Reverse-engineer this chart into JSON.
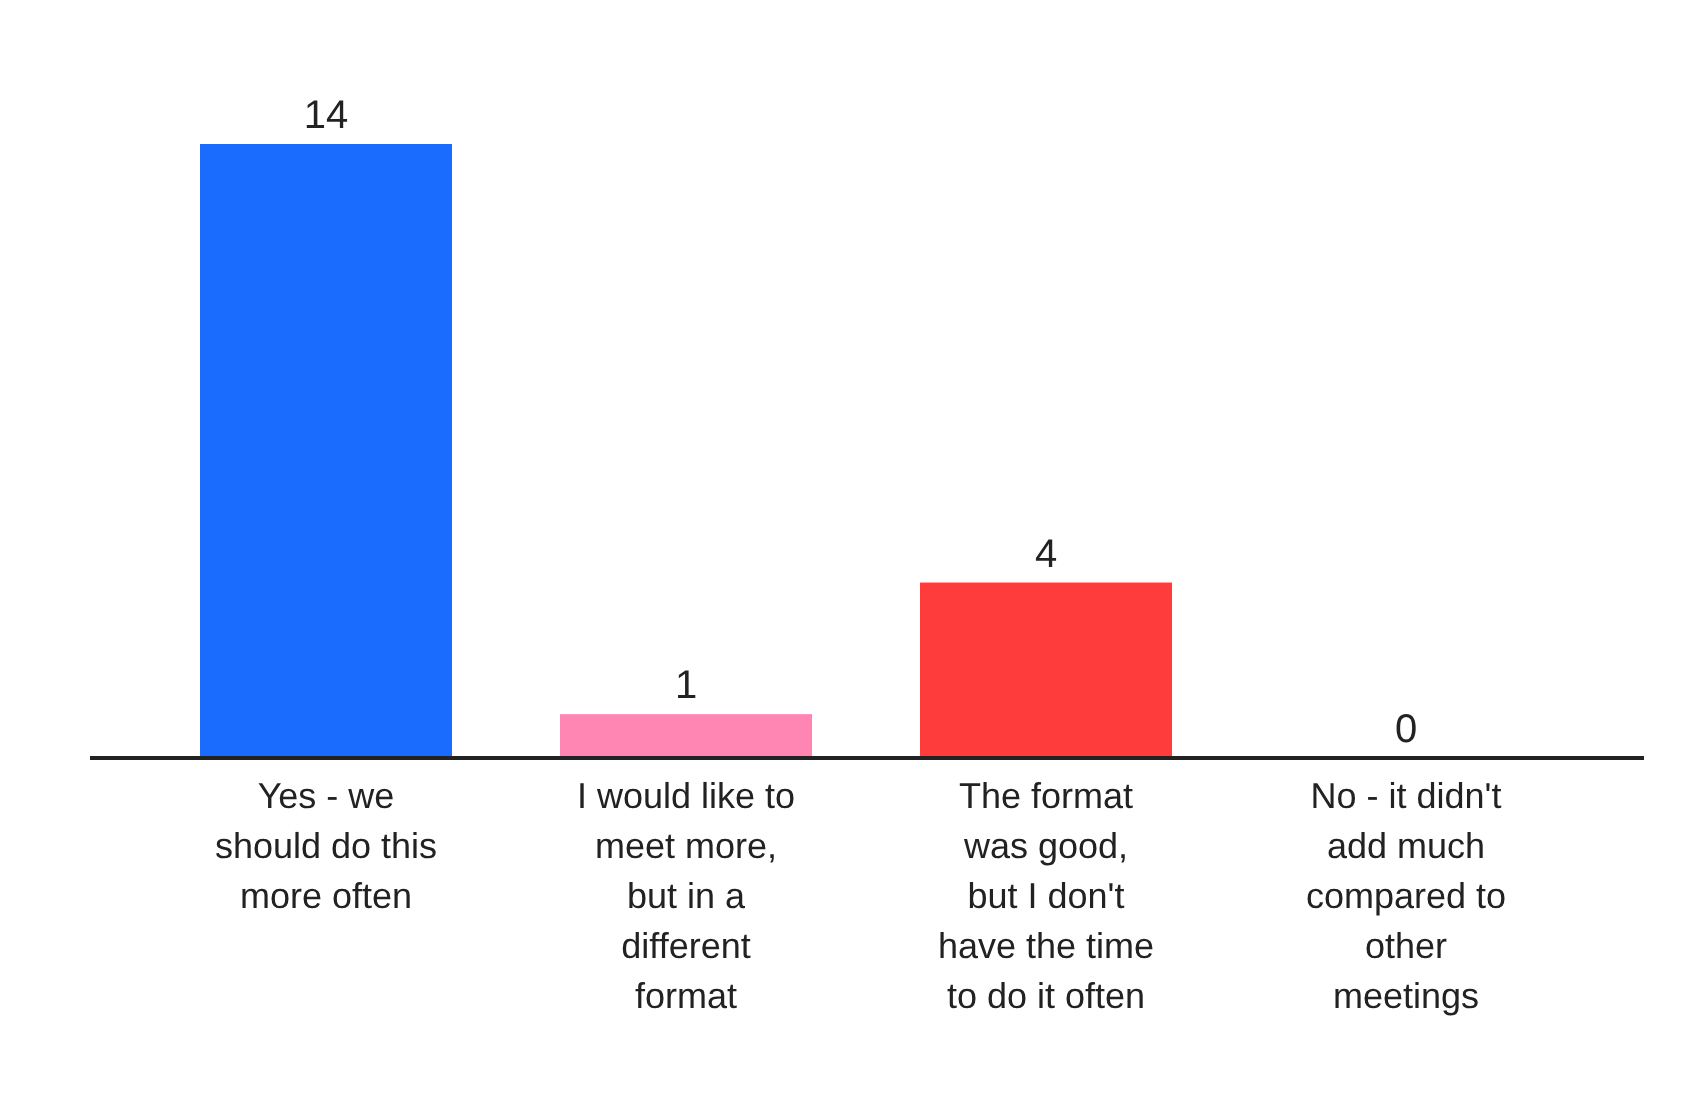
{
  "chart_data": {
    "type": "bar",
    "categories": [
      "Yes - we should do this more often",
      "I would like to meet more, but in a different format",
      "The format was good, but I don't have the time to do it often",
      "No - it didn't add much compared to other meetings"
    ],
    "values": [
      14,
      1,
      4,
      0
    ],
    "colors": [
      "#1a6cff",
      "#ff85b3",
      "#ff3c3c",
      "#7a4fd0"
    ],
    "data_labels": true
  }
}
